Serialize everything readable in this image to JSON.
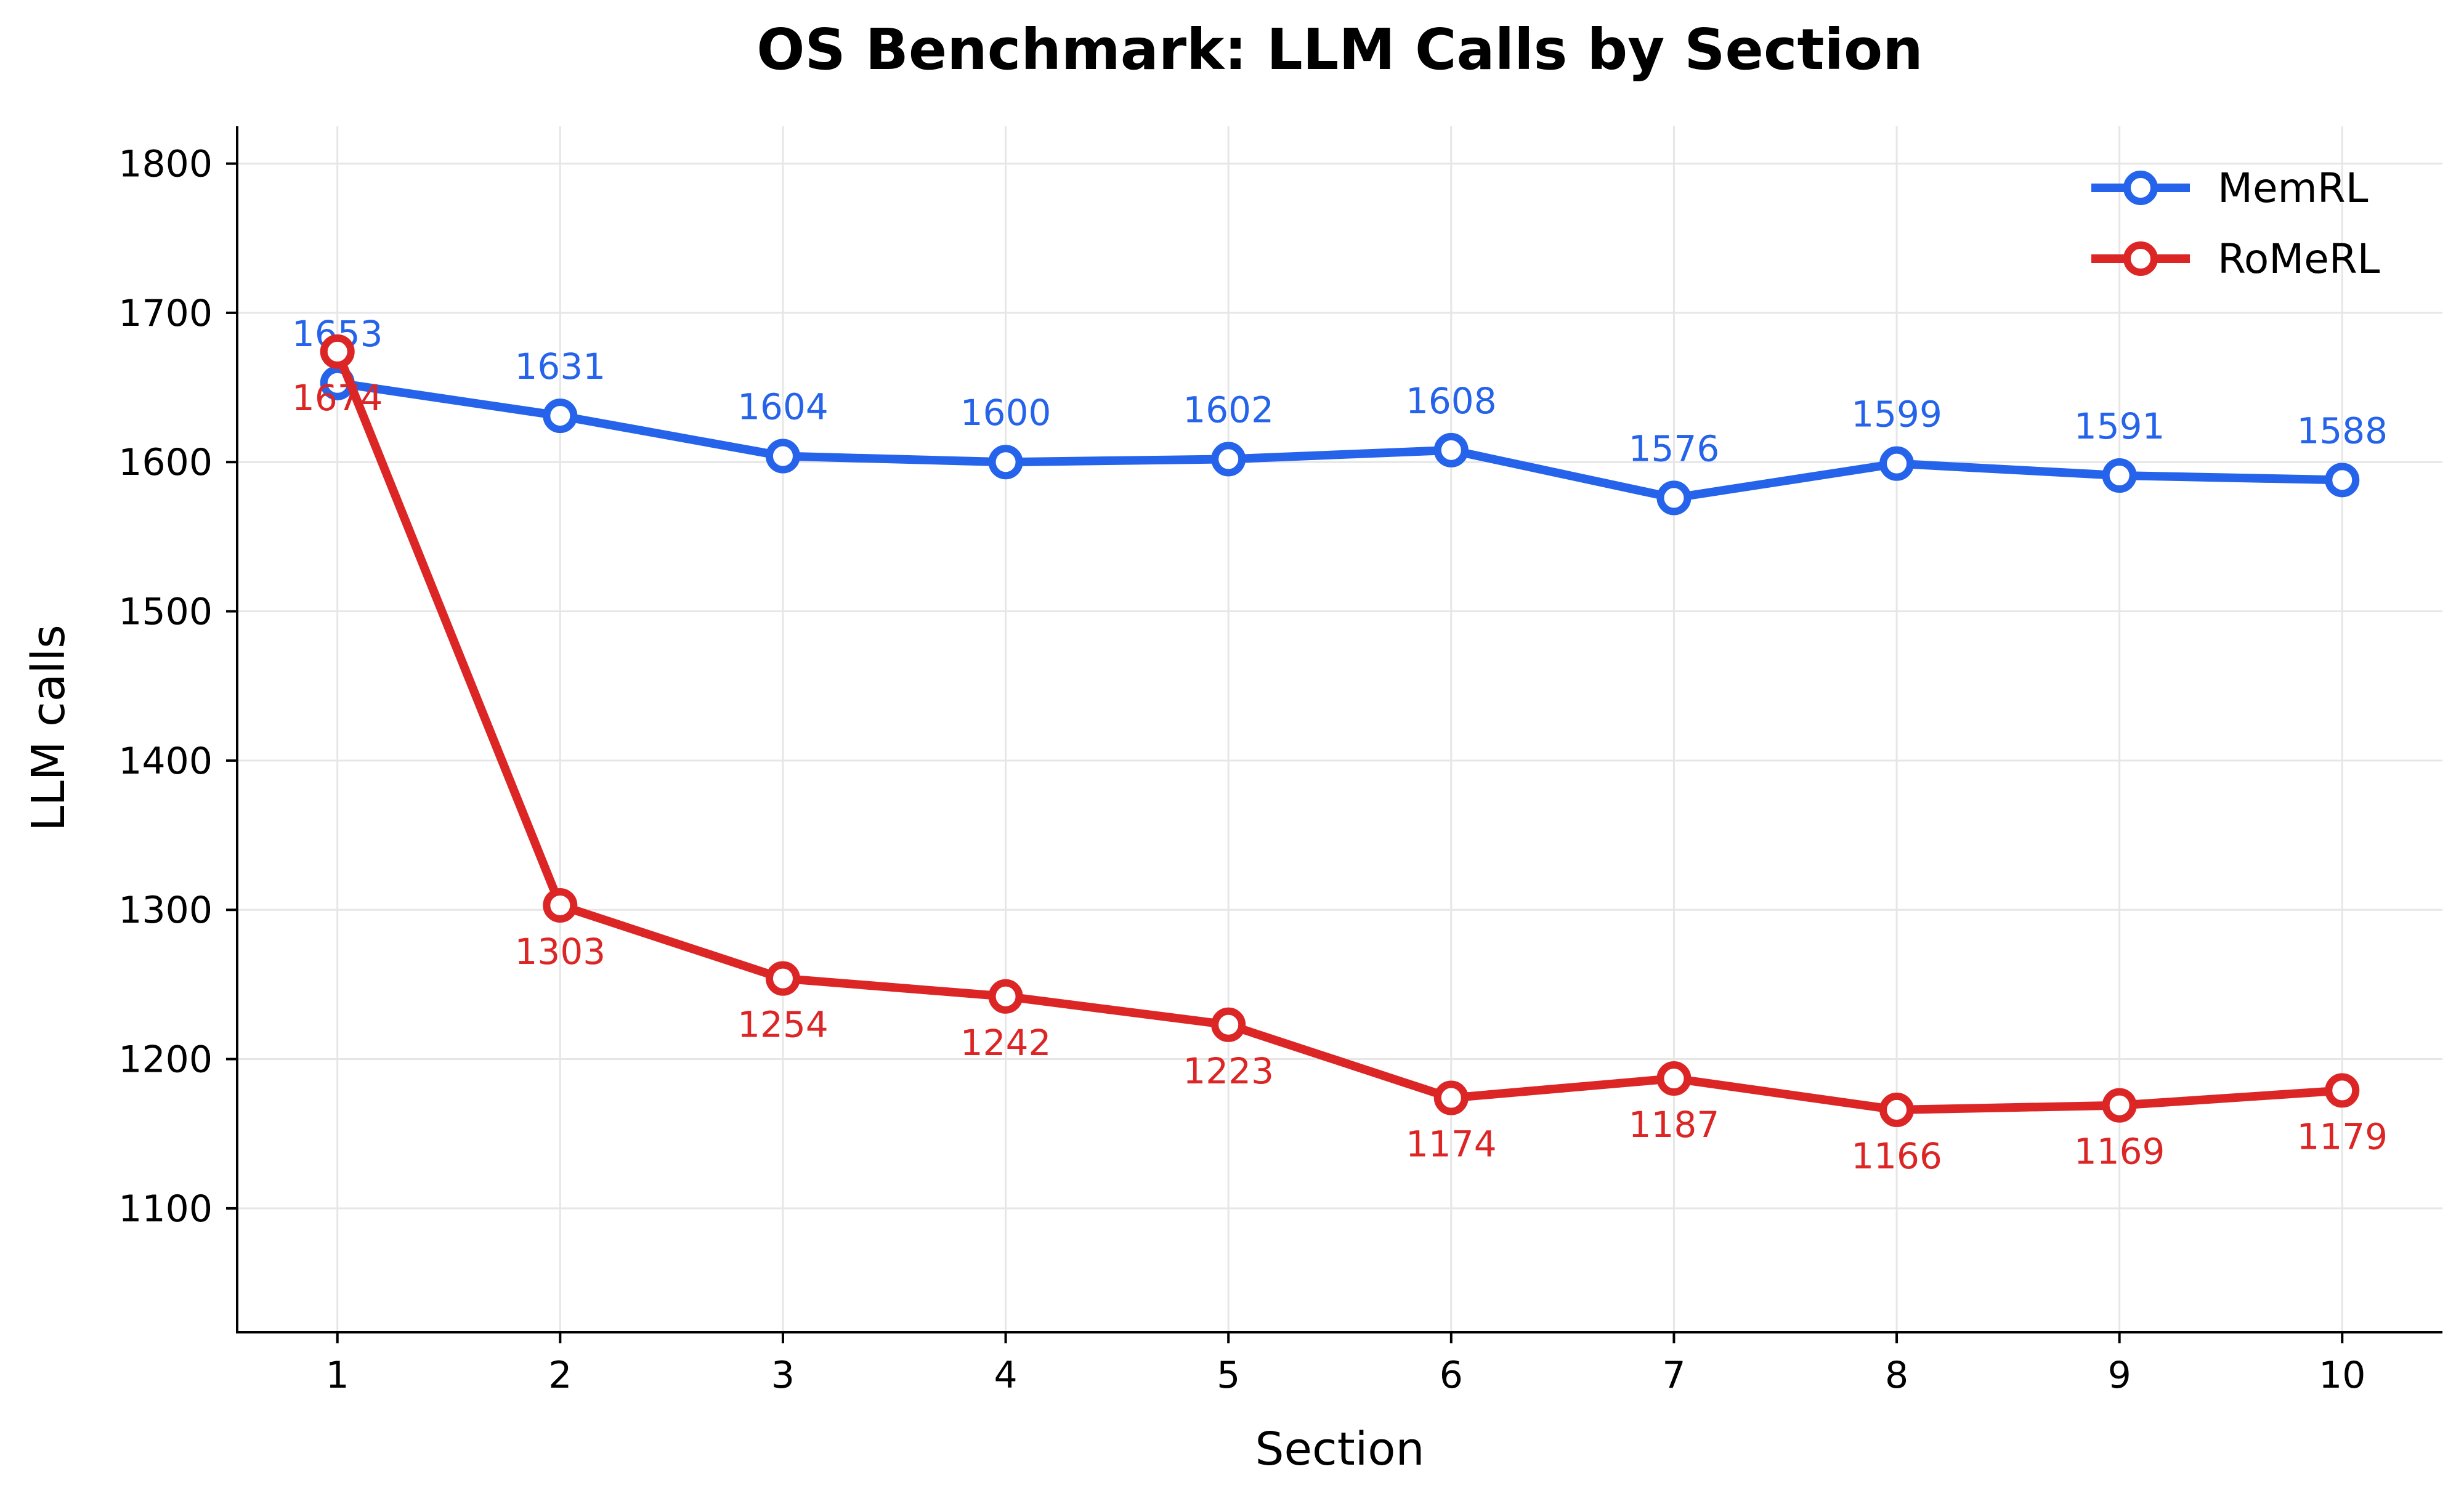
{
  "chart_data": {
    "type": "line",
    "title": "OS Benchmark: LLM Calls by Section",
    "xlabel": "Section",
    "ylabel": "LLM calls",
    "x": [
      1,
      2,
      3,
      4,
      5,
      6,
      7,
      8,
      9,
      10
    ],
    "xlim": [
      0.55,
      10.45
    ],
    "ylim": [
      1017,
      1825
    ],
    "yticks": [
      1100,
      1200,
      1300,
      1400,
      1500,
      1600,
      1700,
      1800
    ],
    "grid": true,
    "legend_position": "top-right",
    "series": [
      {
        "name": "MemRL",
        "color": "#2563eb",
        "label_position": "above",
        "values": [
          1653,
          1631,
          1604,
          1600,
          1602,
          1608,
          1576,
          1599,
          1591,
          1588
        ]
      },
      {
        "name": "RoMeRL",
        "color": "#dc2626",
        "label_position": "below",
        "values": [
          1674,
          1303,
          1254,
          1242,
          1223,
          1174,
          1187,
          1166,
          1169,
          1179
        ]
      }
    ]
  }
}
